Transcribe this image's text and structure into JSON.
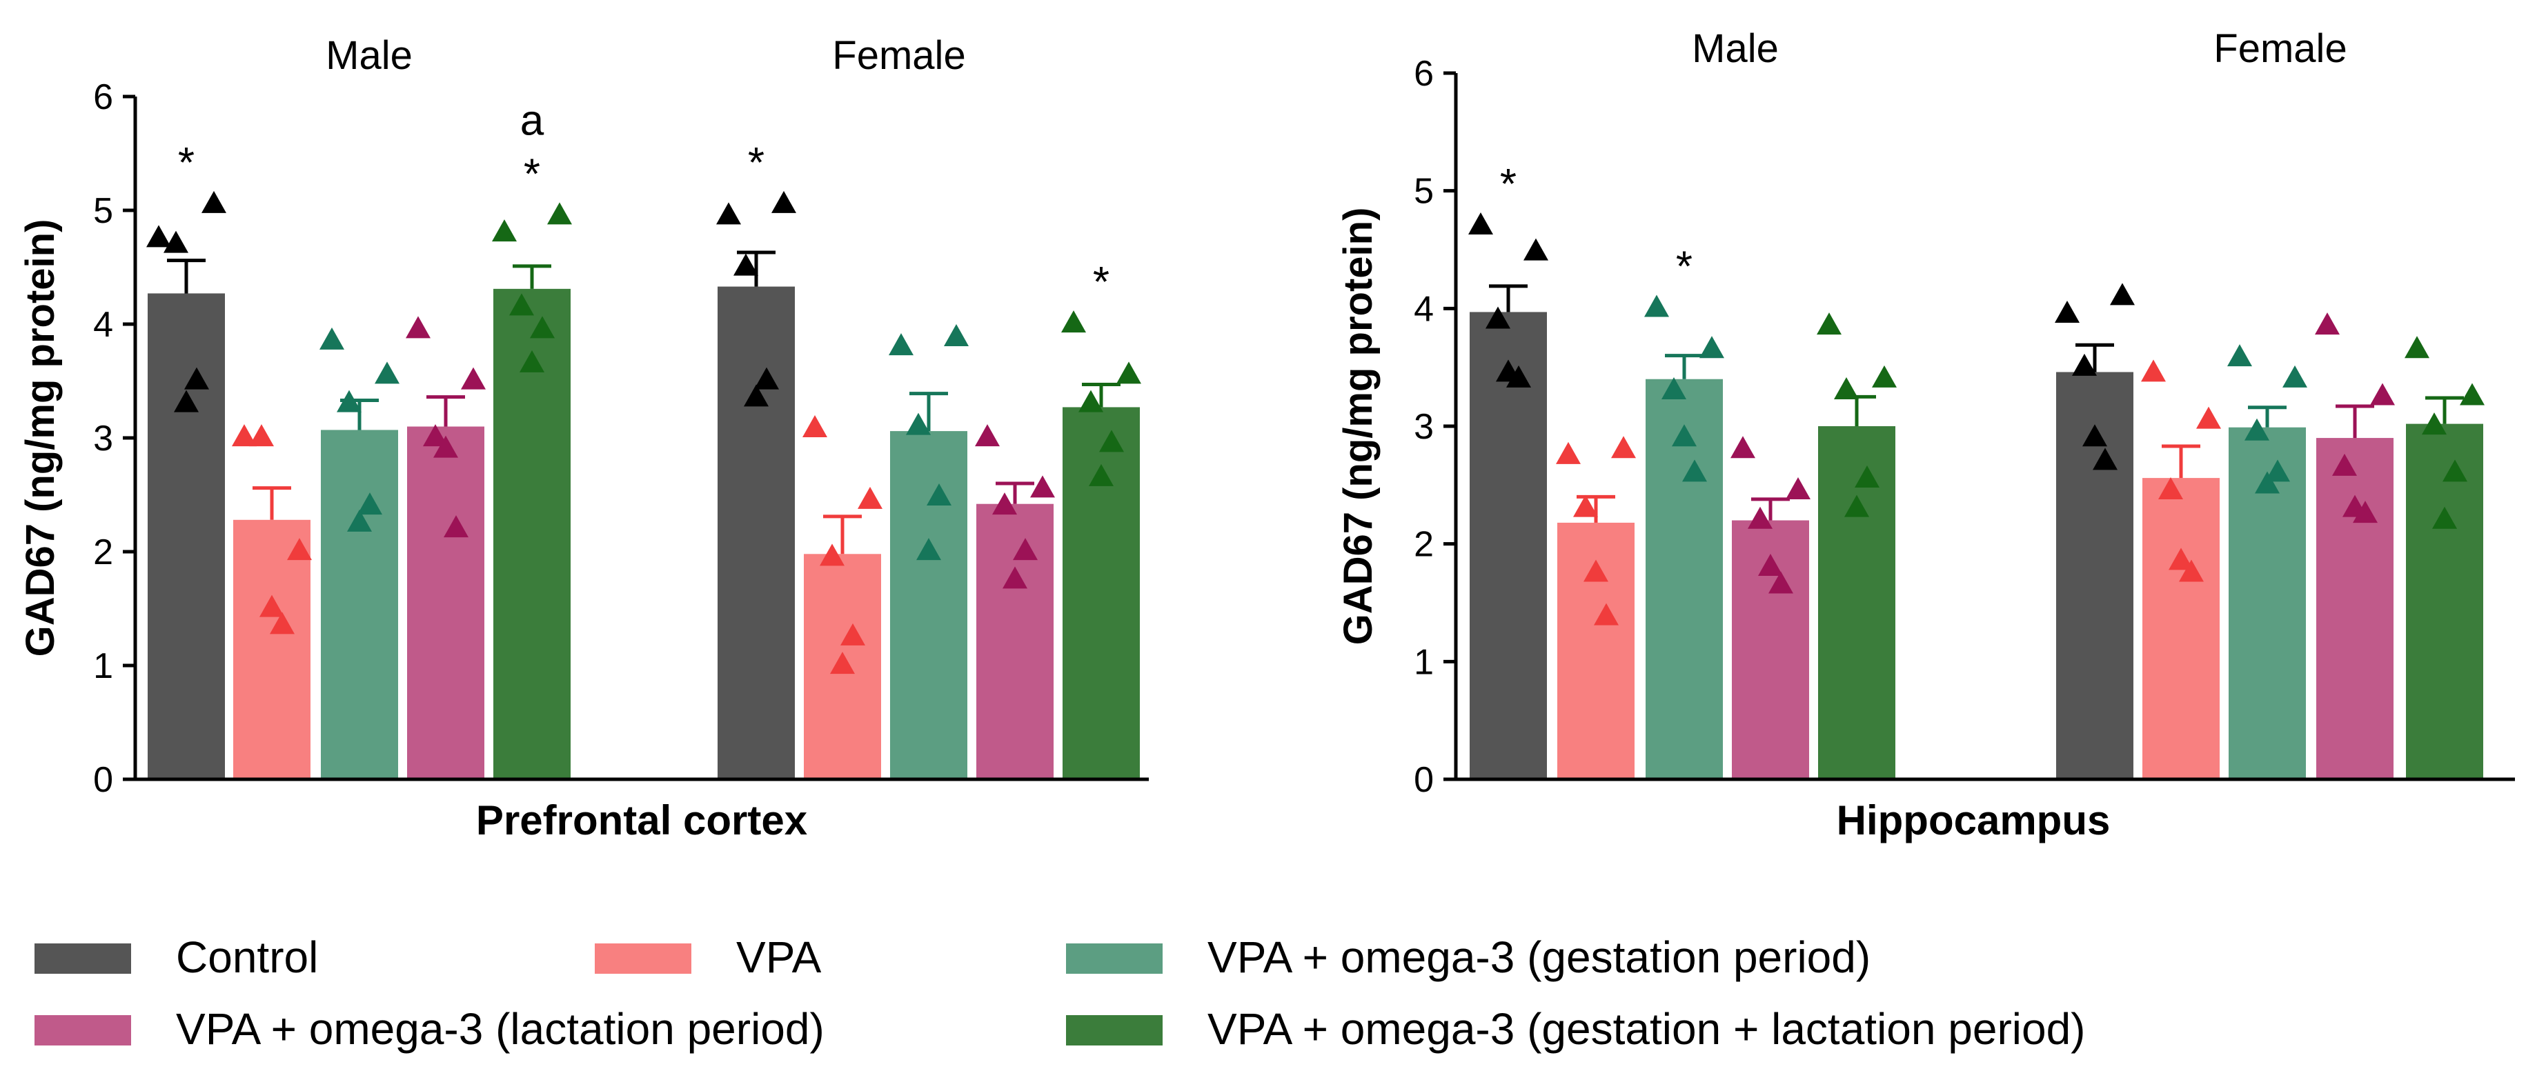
{
  "colors": {
    "Control": "#555555",
    "VPA": "#f88080",
    "gest": "#5c9e82",
    "lact": "#c05a8a",
    "both": "#3b7d3b",
    "VPA_point": "#f03c3c",
    "gest_point": "#16765a",
    "lact_point": "#9c1256",
    "both_point": "#156815",
    "Control_point": "#000000"
  },
  "legend": [
    {
      "key": "Control",
      "label": "Control"
    },
    {
      "key": "VPA",
      "label": "VPA"
    },
    {
      "key": "gest",
      "label": "VPA + omega-3 (gestation period)"
    },
    {
      "key": "lact",
      "label": "VPA + omega-3 (lactation period)"
    },
    {
      "key": "both",
      "label": "VPA + omega-3 (gestation + lactation period)"
    }
  ],
  "chart_data": [
    {
      "type": "bar",
      "title": "Prefrontal cortex",
      "xlabel": "Prefrontal cortex",
      "ylabel": "GAD67 (ng/mg protein)",
      "ylim": [
        0,
        6
      ],
      "yticks": [
        "0",
        "1",
        "2",
        "3",
        "4",
        "5",
        "6"
      ],
      "groups": [
        "Male",
        "Female"
      ],
      "series": [
        {
          "name": "Control",
          "key": "Control",
          "values": [
            4.27,
            4.33
          ],
          "sem": [
            0.29,
            0.3
          ],
          "points": [
            [
              4.75,
              5.05,
              4.7,
              3.5,
              3.3
            ],
            [
              4.95,
              5.05,
              4.5,
              3.5,
              3.35
            ]
          ],
          "annotations": [
            "*",
            "*"
          ]
        },
        {
          "name": "VPA",
          "key": "VPA",
          "values": [
            2.28,
            1.98
          ],
          "sem": [
            0.28,
            0.33
          ],
          "points": [
            [
              3.0,
              2.0,
              3.0,
              1.35,
              1.5
            ],
            [
              3.08,
              2.45,
              1.95,
              1.25,
              1.0
            ]
          ],
          "annotations": [
            "",
            ""
          ]
        },
        {
          "name": "VPA + omega-3 (gestation period)",
          "key": "gest",
          "values": [
            3.07,
            3.06
          ],
          "sem": [
            0.26,
            0.33
          ],
          "points": [
            [
              3.85,
              3.55,
              3.3,
              2.4,
              2.25
            ],
            [
              3.8,
              3.88,
              3.1,
              2.48,
              2.0
            ]
          ],
          "annotations": [
            "",
            ""
          ]
        },
        {
          "name": "VPA + omega-3 (lactation period)",
          "key": "lact",
          "values": [
            3.1,
            2.42
          ],
          "sem": [
            0.26,
            0.18
          ],
          "points": [
            [
              3.95,
              3.5,
              3.0,
              2.2,
              2.9
            ],
            [
              3.0,
              2.55,
              2.4,
              2.0,
              1.75
            ]
          ],
          "annotations": [
            "",
            ""
          ]
        },
        {
          "name": "VPA + omega-3 (gestation + lactation period)",
          "key": "both",
          "values": [
            4.31,
            3.27
          ],
          "sem": [
            0.2,
            0.2
          ],
          "points": [
            [
              4.8,
              4.95,
              4.15,
              3.95,
              3.65
            ],
            [
              4.0,
              3.55,
              3.3,
              2.95,
              2.65
            ]
          ],
          "annotations": [
            "* a",
            "*"
          ]
        }
      ]
    },
    {
      "type": "bar",
      "title": "Hippocampus",
      "xlabel": "Hippocampus",
      "ylabel": "GAD67 (ng/mg protein)",
      "ylim": [
        0,
        6
      ],
      "yticks": [
        "0",
        "1",
        "2",
        "3",
        "4",
        "5",
        "6"
      ],
      "groups": [
        "Male",
        "Female"
      ],
      "series": [
        {
          "name": "Control",
          "key": "Control",
          "values": [
            3.97,
            3.46
          ],
          "sem": [
            0.22,
            0.23
          ],
          "points": [
            [
              4.7,
              4.48,
              3.9,
              3.4,
              3.45
            ],
            [
              3.95,
              4.1,
              3.5,
              2.7,
              2.9
            ]
          ],
          "annotations": [
            "*",
            ""
          ]
        },
        {
          "name": "VPA",
          "key": "VPA",
          "values": [
            2.18,
            2.56
          ],
          "sem": [
            0.22,
            0.27
          ],
          "points": [
            [
              2.75,
              2.8,
              2.3,
              1.38,
              1.75
            ],
            [
              3.45,
              3.05,
              2.45,
              1.75,
              1.85
            ]
          ],
          "annotations": [
            "",
            ""
          ]
        },
        {
          "name": "VPA + omega-3 (gestation period)",
          "key": "gest",
          "values": [
            3.4,
            2.99
          ],
          "sem": [
            0.2,
            0.17
          ],
          "points": [
            [
              4.0,
              3.65,
              3.3,
              2.6,
              2.9
            ],
            [
              3.58,
              3.4,
              2.95,
              2.6,
              2.5
            ]
          ],
          "annotations": [
            "*",
            ""
          ]
        },
        {
          "name": "VPA + omega-3 (lactation period)",
          "key": "lact",
          "values": [
            2.2,
            2.9
          ],
          "sem": [
            0.18,
            0.27
          ],
          "points": [
            [
              2.8,
              2.45,
              2.2,
              1.65,
              1.8
            ],
            [
              3.85,
              3.25,
              2.65,
              2.25,
              2.3
            ]
          ],
          "annotations": [
            "",
            ""
          ]
        },
        {
          "name": "VPA + omega-3 (gestation + lactation period)",
          "key": "both",
          "values": [
            3.0,
            3.02
          ],
          "sem": [
            0.25,
            0.22
          ],
          "points": [
            [
              3.85,
              3.4,
              3.3,
              2.55,
              2.3
            ],
            [
              3.65,
              3.25,
              3.0,
              2.6,
              2.2
            ]
          ],
          "annotations": [
            "",
            ""
          ]
        }
      ]
    }
  ]
}
